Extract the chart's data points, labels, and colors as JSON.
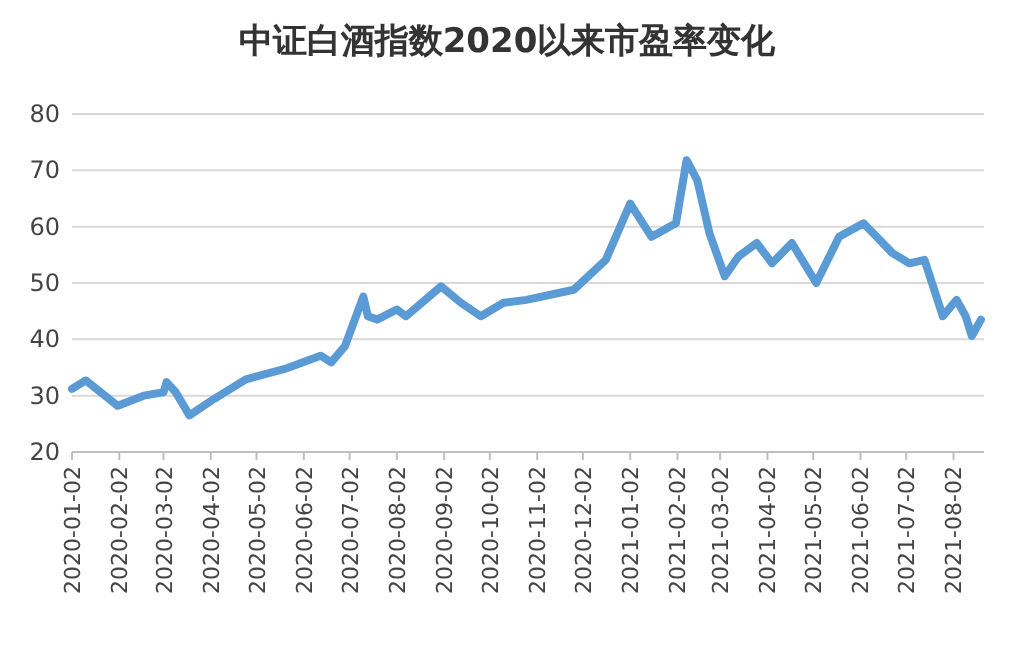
{
  "chart_data": {
    "type": "line",
    "title": "中证白酒指数2020以来市盈率变化",
    "x": [
      "2020-01-02",
      "2020-01-11",
      "2020-02-01",
      "2020-02-18",
      "2020-03-02",
      "2020-03-04",
      "2020-03-10",
      "2020-03-19",
      "2020-04-04",
      "2020-04-25",
      "2020-05-20",
      "2020-06-13",
      "2020-06-20",
      "2020-06-29",
      "2020-07-11",
      "2020-07-14",
      "2020-07-20",
      "2020-08-02",
      "2020-08-08",
      "2020-08-31",
      "2020-09-13",
      "2020-09-26",
      "2020-10-11",
      "2020-10-26",
      "2020-11-26",
      "2020-12-17",
      "2021-01-02",
      "2021-01-16",
      "2021-02-01",
      "2021-02-08",
      "2021-02-15",
      "2021-02-23",
      "2021-03-05",
      "2021-03-14",
      "2021-03-26",
      "2021-04-05",
      "2021-04-18",
      "2021-05-04",
      "2021-05-19",
      "2021-06-04",
      "2021-06-23",
      "2021-07-04",
      "2021-07-14",
      "2021-07-26",
      "2021-08-04",
      "2021-08-10",
      "2021-08-14",
      "2021-08-20"
    ],
    "series": [
      {
        "color": "#5b9bd5",
        "values": [
          31.2,
          32.7,
          28.2,
          30,
          30.6,
          32.4,
          30.6,
          26.5,
          29.4,
          32.9,
          34.7,
          37.1,
          35.9,
          38.8,
          47.6,
          44.1,
          43.5,
          45.3,
          44.1,
          49.4,
          46.5,
          44.1,
          46.5,
          47,
          48.8,
          54.1,
          64.1,
          58.2,
          60.6,
          71.8,
          68.2,
          58.8,
          51.2,
          54.7,
          57.1,
          53.5,
          57.1,
          50,
          58.2,
          60.6,
          55.3,
          53.5,
          54.1,
          44.1,
          47,
          44.1,
          40.6,
          43.5
        ]
      }
    ],
    "xlim": [
      "2020-01-02",
      "2021-08-22"
    ],
    "xticks": [
      "2020-01-02",
      "2020-02-02",
      "2020-03-02",
      "2020-04-02",
      "2020-05-02",
      "2020-06-02",
      "2020-07-02",
      "2020-08-02",
      "2020-09-02",
      "2020-10-02",
      "2020-11-02",
      "2020-12-02",
      "2021-01-02",
      "2021-02-02",
      "2021-03-02",
      "2021-04-02",
      "2021-05-02",
      "2021-06-02",
      "2021-07-02",
      "2021-08-02"
    ],
    "ylim": [
      20,
      80
    ],
    "yticks": [
      20,
      30,
      40,
      50,
      60,
      70,
      80
    ],
    "grid": "y",
    "marker": "none",
    "line_style": "solid"
  }
}
